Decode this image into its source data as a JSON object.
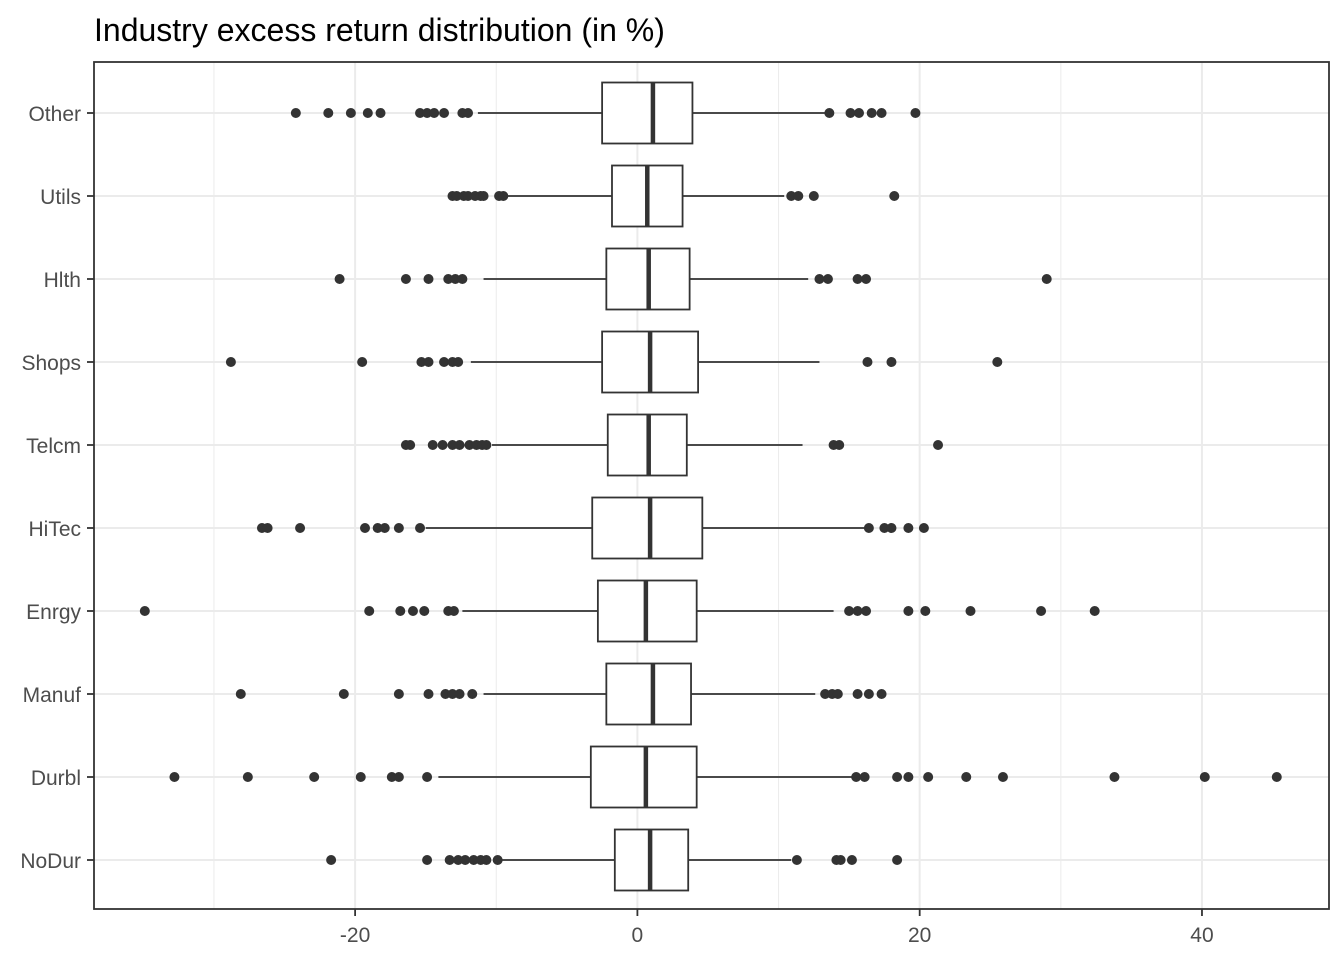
{
  "chart_data": {
    "type": "boxplot",
    "title": "Industry excess return distribution (in %)",
    "xlabel": "",
    "ylabel": "",
    "xlim": [
      -38.5,
      49
    ],
    "xticks": [
      -20,
      0,
      20,
      40
    ],
    "xtick_labels": [
      "-20",
      "0",
      "20",
      "40"
    ],
    "grid": true,
    "colors": {
      "box_stroke": "#333333",
      "outlier": "#333333",
      "grid": "#ebebeb",
      "panel_border": "#333333",
      "text": "#4d4d4d"
    },
    "categories": [
      "Other",
      "Utils",
      "Hlth",
      "Shops",
      "Telcm",
      "HiTec",
      "Enrgy",
      "Manuf",
      "Durbl",
      "NoDur"
    ],
    "boxes": [
      {
        "name": "Other",
        "whisker_low": -11.3,
        "q1": -2.5,
        "median": 1.1,
        "q3": 3.9,
        "whisker_high": 13.4,
        "outliers": [
          -24.2,
          -21.9,
          -20.3,
          -19.1,
          -18.2,
          -15.4,
          -14.9,
          -14.4,
          -13.7,
          -12.4,
          -12.0,
          13.6,
          15.1,
          15.7,
          16.6,
          17.3,
          19.7
        ]
      },
      {
        "name": "Utils",
        "whisker_low": -9.2,
        "q1": -1.8,
        "median": 0.7,
        "q3": 3.2,
        "whisker_high": 10.4,
        "outliers": [
          -13.1,
          -12.8,
          -12.3,
          -12.0,
          -11.5,
          -11.1,
          -10.9,
          -9.8,
          -9.5,
          10.9,
          11.4,
          12.5,
          18.2
        ]
      },
      {
        "name": "Hlth",
        "whisker_low": -10.9,
        "q1": -2.2,
        "median": 0.8,
        "q3": 3.7,
        "whisker_high": 12.1,
        "outliers": [
          -21.1,
          -16.4,
          -14.8,
          -13.4,
          -12.9,
          -12.4,
          12.9,
          13.5,
          15.6,
          16.2,
          29.0
        ]
      },
      {
        "name": "Shops",
        "whisker_low": -11.8,
        "q1": -2.5,
        "median": 0.9,
        "q3": 4.3,
        "whisker_high": 12.9,
        "outliers": [
          -28.8,
          -19.5,
          -15.3,
          -14.8,
          -13.7,
          -13.1,
          -12.7,
          16.3,
          18.0,
          25.5
        ]
      },
      {
        "name": "Telcm",
        "whisker_low": -10.3,
        "q1": -2.1,
        "median": 0.8,
        "q3": 3.5,
        "whisker_high": 11.7,
        "outliers": [
          -16.4,
          -16.1,
          -14.5,
          -13.8,
          -13.1,
          -12.6,
          -11.9,
          -11.4,
          -11.0,
          -10.7,
          13.9,
          14.3,
          21.3
        ]
      },
      {
        "name": "HiTec",
        "whisker_low": -15.0,
        "q1": -3.2,
        "median": 0.9,
        "q3": 4.6,
        "whisker_high": 16.2,
        "outliers": [
          -26.6,
          -26.2,
          -23.9,
          -19.3,
          -18.4,
          -17.9,
          -16.9,
          -15.4,
          16.4,
          17.5,
          18.0,
          19.2,
          20.3
        ]
      },
      {
        "name": "Enrgy",
        "whisker_low": -12.4,
        "q1": -2.8,
        "median": 0.6,
        "q3": 4.2,
        "whisker_high": 13.9,
        "outliers": [
          -34.9,
          -19.0,
          -16.8,
          -15.9,
          -15.1,
          -13.4,
          -13.0,
          15.0,
          15.6,
          16.2,
          19.2,
          20.4,
          23.6,
          28.6,
          32.4
        ]
      },
      {
        "name": "Manuf",
        "whisker_low": -10.9,
        "q1": -2.2,
        "median": 1.1,
        "q3": 3.8,
        "whisker_high": 12.6,
        "outliers": [
          -28.1,
          -20.8,
          -16.9,
          -14.8,
          -13.6,
          -13.1,
          -12.6,
          -11.7,
          13.3,
          13.8,
          14.2,
          15.6,
          16.4,
          17.3
        ]
      },
      {
        "name": "Durbl",
        "whisker_low": -14.1,
        "q1": -3.3,
        "median": 0.6,
        "q3": 4.2,
        "whisker_high": 15.3,
        "outliers": [
          -32.8,
          -27.6,
          -22.9,
          -19.6,
          -17.4,
          -16.9,
          -14.9,
          15.5,
          16.1,
          18.4,
          19.2,
          20.6,
          23.3,
          25.9,
          33.8,
          40.2,
          45.3
        ]
      },
      {
        "name": "NoDur",
        "whisker_low": -9.7,
        "q1": -1.6,
        "median": 0.9,
        "q3": 3.6,
        "whisker_high": 10.9,
        "outliers": [
          -21.7,
          -14.9,
          -13.3,
          -12.7,
          -12.2,
          -11.6,
          -11.1,
          -10.7,
          -9.9,
          11.3,
          14.1,
          14.4,
          15.2,
          18.4
        ]
      }
    ]
  }
}
